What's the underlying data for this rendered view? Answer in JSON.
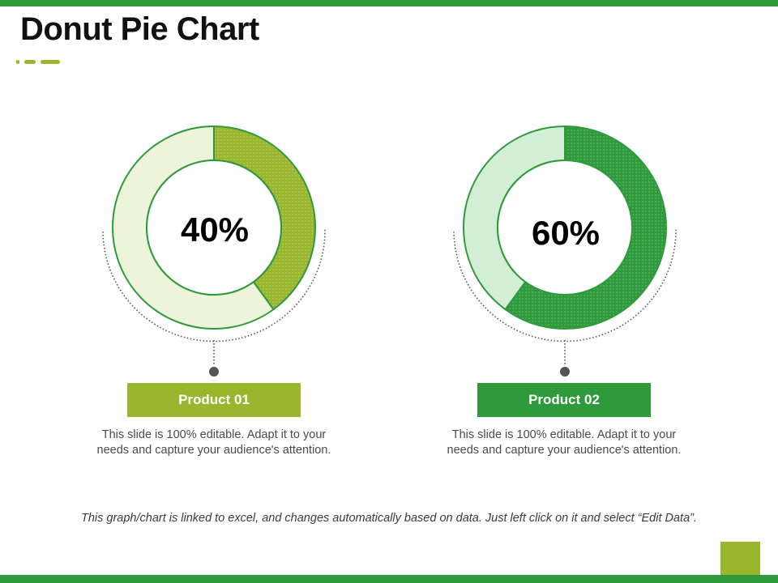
{
  "title": "Donut Pie Chart",
  "colors": {
    "bar": "#2e9a3c",
    "product1": "#9ab62e",
    "product1_rest": "#eef4d9",
    "product2": "#2e9a3c",
    "product2_rest": "#d2efd6",
    "outline": "#2e9a3c"
  },
  "chart_data": [
    {
      "type": "pie",
      "title": "",
      "center_label": "40%",
      "series": [
        {
          "values": [
            40,
            60
          ]
        }
      ],
      "product_label": "Product 01",
      "description": "This slide is 100% editable. Adapt it to your needs and capture your audience's attention."
    },
    {
      "type": "pie",
      "title": "",
      "center_label": "60%",
      "series": [
        {
          "values": [
            60,
            40
          ]
        }
      ],
      "product_label": "Product 02",
      "description": "This slide is 100% editable. Adapt it to your needs and capture your audience's attention."
    }
  ],
  "footnote": "This graph/chart is linked to excel, and changes automatically based on data. Just left click on it and select “Edit Data”."
}
